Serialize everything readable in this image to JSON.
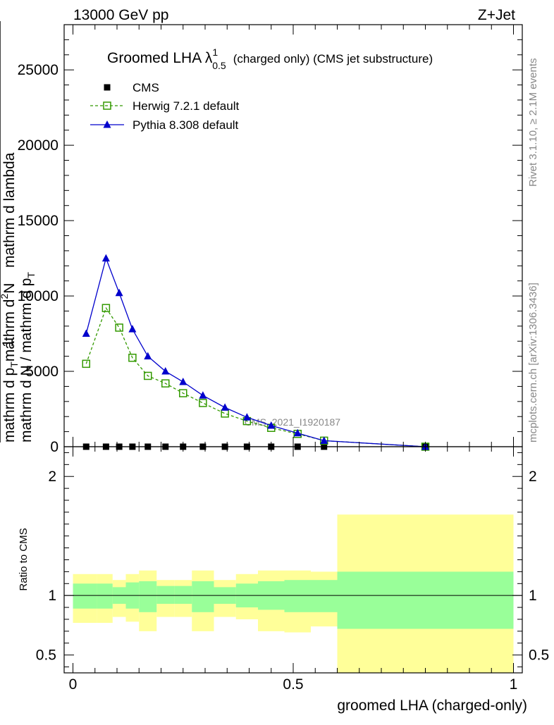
{
  "header": {
    "left": "13000 GeV pp",
    "right": "Z+Jet"
  },
  "side_labels": {
    "rivet": "Rivet 3.1.10, ≥ 2.1M events",
    "mcplots": "mcplots.cern.ch [arXiv:1306.3436]"
  },
  "watermark": "CMS_2021_I1920187",
  "chart_data": [
    {
      "type": "line",
      "title": "Groomed LHA",
      "title_symbol": "λ",
      "title_sup": "1",
      "title_sub": "0.5",
      "title_suffix": "(charged only) (CMS jet substructure)",
      "ylabel_parts": [
        "1",
        "mathrm d N / mathrm d p",
        "T",
        "mathrm d p",
        "T",
        "mathrm d",
        "2",
        "N",
        "mathrm d lambda"
      ],
      "xlim": [
        -0.02,
        1.02
      ],
      "ylim": [
        0,
        28000
      ],
      "yticks": [
        0,
        5000,
        10000,
        15000,
        20000,
        25000
      ],
      "ytick_labels": [
        "0",
        "5000",
        "10000",
        "15000",
        "20000",
        "25000"
      ],
      "legend": {
        "position": "top-left",
        "entries": [
          "CMS",
          "Herwig 7.2.1 default",
          "Pythia 8.308 default"
        ]
      },
      "series": [
        {
          "name": "CMS",
          "color": "#000000",
          "marker": "square-filled",
          "x": [
            0.03,
            0.075,
            0.105,
            0.135,
            0.17,
            0.21,
            0.25,
            0.295,
            0.345,
            0.395,
            0.45,
            0.51,
            0.57,
            0.8
          ],
          "y": [
            0,
            0,
            0,
            0,
            0,
            0,
            0,
            0,
            0,
            0,
            0,
            0,
            0,
            0
          ]
        },
        {
          "name": "Herwig 7.2.1 default",
          "color": "#339900",
          "marker": "square-open",
          "dashed": true,
          "x": [
            0.03,
            0.075,
            0.105,
            0.135,
            0.17,
            0.21,
            0.25,
            0.295,
            0.345,
            0.395,
            0.45,
            0.51,
            0.57,
            0.8
          ],
          "y": [
            5500,
            9200,
            7900,
            5900,
            4700,
            4200,
            3550,
            2900,
            2200,
            1700,
            1250,
            850,
            400,
            0
          ]
        },
        {
          "name": "Pythia 8.308 default",
          "color": "#0000cc",
          "marker": "triangle-filled",
          "x": [
            0.03,
            0.075,
            0.105,
            0.135,
            0.17,
            0.21,
            0.25,
            0.295,
            0.345,
            0.395,
            0.45,
            0.51,
            0.57,
            0.8
          ],
          "y": [
            7500,
            12500,
            10200,
            7800,
            6000,
            5000,
            4300,
            3400,
            2600,
            1950,
            1400,
            900,
            400,
            0
          ]
        }
      ]
    },
    {
      "type": "area",
      "ylabel": "Ratio to CMS",
      "xlabel": "groomed LHA (charged-only)",
      "xlim": [
        -0.02,
        1.02
      ],
      "ylim": [
        0.35,
        2.25
      ],
      "xticks": [
        0,
        0.5,
        1
      ],
      "xtick_labels": [
        "0",
        "0.5",
        "1"
      ],
      "yticks": [
        0.5,
        1,
        2
      ],
      "ytick_labels": [
        "0.5",
        "1",
        "2"
      ],
      "bin_edges": [
        0,
        0.055,
        0.09,
        0.12,
        0.15,
        0.19,
        0.23,
        0.27,
        0.32,
        0.37,
        0.42,
        0.48,
        0.54,
        0.6,
        1.0
      ],
      "inner_band": {
        "color": "#99ff99",
        "low": [
          0.89,
          0.89,
          0.93,
          0.89,
          0.86,
          0.93,
          0.93,
          0.86,
          0.93,
          0.9,
          0.88,
          0.86,
          0.86,
          0.72
        ],
        "high": [
          1.1,
          1.1,
          1.07,
          1.11,
          1.12,
          1.08,
          1.08,
          1.12,
          1.07,
          1.1,
          1.12,
          1.13,
          1.13,
          1.2
        ]
      },
      "outer_band": {
        "color": "#ffff99",
        "low": [
          0.77,
          0.77,
          0.82,
          0.78,
          0.7,
          0.82,
          0.82,
          0.7,
          0.82,
          0.8,
          0.7,
          0.69,
          0.74,
          0.0
        ],
        "high": [
          1.18,
          1.18,
          1.13,
          1.18,
          1.21,
          1.13,
          1.13,
          1.21,
          1.13,
          1.18,
          1.21,
          1.21,
          1.2,
          1.68
        ]
      },
      "reference_line": 1
    }
  ]
}
